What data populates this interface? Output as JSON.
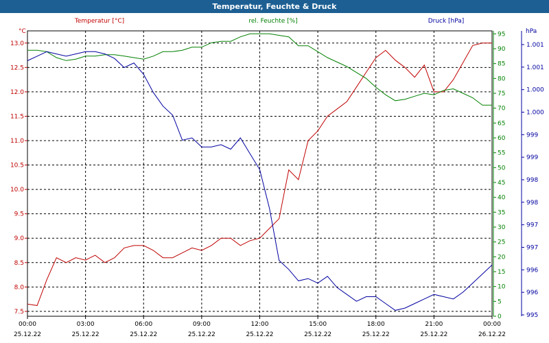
{
  "chart_data": {
    "type": "line",
    "title": "Temperatur, Feuchte & Druck",
    "x_tick_labels": [
      {
        "time": "00:00",
        "date": "25.12.22"
      },
      {
        "time": "03:00",
        "date": "25.12.22"
      },
      {
        "time": "06:00",
        "date": "25.12.22"
      },
      {
        "time": "09:00",
        "date": "25.12.22"
      },
      {
        "time": "12:00",
        "date": "25.12.22"
      },
      {
        "time": "15:00",
        "date": "25.12.22"
      },
      {
        "time": "18:00",
        "date": "25.12.22"
      },
      {
        "time": "21:00",
        "date": "25.12.22"
      },
      {
        "time": "00:00",
        "date": "26.12.22"
      }
    ],
    "x_range_hours": [
      0,
      24
    ],
    "axes": {
      "temperature": {
        "label": "Temperatur [°C]",
        "unit": "°C",
        "ylim": [
          7.4,
          13.25
        ],
        "ticks": [
          7.5,
          8.0,
          8.5,
          9.0,
          9.5,
          10.0,
          10.5,
          11.0,
          11.5,
          12.0,
          12.5,
          13.0
        ],
        "color": "#c00000"
      },
      "humidity": {
        "label": "rel. Feuchte [%]",
        "unit": "%",
        "ylim": [
          0,
          96
        ],
        "ticks": [
          0,
          5,
          10,
          15,
          20,
          25,
          30,
          35,
          40,
          45,
          50,
          55,
          60,
          65,
          70,
          75,
          80,
          85,
          90,
          95
        ],
        "color": "#008000"
      },
      "pressure": {
        "label": "Druck [hPa]",
        "unit": "hPa",
        "tick_labels": [
          "995",
          "996",
          "996",
          "997",
          "997",
          "998",
          "998",
          "999",
          "999",
          "1.000",
          "1.000",
          "1.001",
          "1.001"
        ],
        "color": "#0000a0"
      }
    },
    "series": [
      {
        "name": "Temperatur [°C]",
        "axis": "temperature",
        "color": "#c00000",
        "x": [
          0,
          0.5,
          1,
          1.5,
          2,
          2.5,
          3,
          3.5,
          4,
          4.5,
          5,
          5.5,
          6,
          6.5,
          7,
          7.5,
          8,
          8.5,
          9,
          9.5,
          10,
          10.5,
          11,
          11.5,
          12,
          12.5,
          13,
          13.5,
          14,
          14.5,
          15,
          15.5,
          16,
          16.5,
          17,
          17.5,
          18,
          18.5,
          19,
          19.5,
          20,
          20.5,
          21,
          21.5,
          22,
          22.5,
          23,
          23.5,
          24
        ],
        "values": [
          7.65,
          7.62,
          8.15,
          8.6,
          8.5,
          8.6,
          8.55,
          8.65,
          8.5,
          8.6,
          8.8,
          8.85,
          8.85,
          8.75,
          8.6,
          8.6,
          8.7,
          8.8,
          8.75,
          8.85,
          9.0,
          9.0,
          8.85,
          8.95,
          9.0,
          9.2,
          9.4,
          10.4,
          10.2,
          11.0,
          11.2,
          11.5,
          11.65,
          11.8,
          12.1,
          12.4,
          12.7,
          12.85,
          12.65,
          12.5,
          12.3,
          12.55,
          12.0,
          12.0,
          12.25,
          12.6,
          12.95,
          13.0,
          13.0
        ]
      },
      {
        "name": "rel. Feuchte [%]",
        "axis": "humidity",
        "color": "#008000",
        "x": [
          0,
          0.5,
          1,
          1.5,
          2,
          2.5,
          3,
          3.5,
          4,
          4.5,
          5,
          5.5,
          6,
          6.5,
          7,
          7.5,
          8,
          8.5,
          9,
          9.5,
          10,
          10.5,
          11,
          11.5,
          12,
          12.5,
          13,
          13.5,
          14,
          14.5,
          15,
          15.5,
          16,
          16.5,
          17,
          17.5,
          18,
          18.5,
          19,
          19.5,
          20,
          20.5,
          21,
          21.5,
          22,
          22.5,
          23,
          23.5,
          24
        ],
        "values": [
          89.5,
          89.5,
          89,
          87,
          86,
          86.5,
          87.5,
          87.5,
          88,
          88,
          87.5,
          87,
          86.5,
          87.5,
          89,
          89,
          89.5,
          90.5,
          90.5,
          92,
          92.5,
          92.5,
          94,
          95,
          95,
          95,
          94.5,
          94,
          91,
          91,
          89,
          87,
          85.5,
          84,
          82,
          80,
          77,
          74.5,
          72.5,
          73,
          74,
          75,
          74.5,
          76,
          76.5,
          75,
          73.5,
          71,
          71
        ]
      },
      {
        "name": "Druck [hPa]",
        "axis": "pressure",
        "color": "#0000a0",
        "x": [
          0,
          0.5,
          1,
          1.5,
          2,
          2.5,
          3,
          3.5,
          4,
          4.5,
          5,
          5.5,
          6,
          6.5,
          7,
          7.5,
          8,
          8.5,
          9,
          9.5,
          10,
          10.5,
          11,
          11.5,
          12,
          12.5,
          13,
          13.5,
          14,
          14.5,
          15,
          15.5,
          16,
          16.5,
          17,
          17.5,
          18,
          18.5,
          19,
          19.5,
          20,
          20.5,
          21,
          21.5,
          22,
          22.5,
          23,
          23.5,
          24
        ],
        "values": [
          1000.9,
          1001.0,
          1001.1,
          1001.05,
          1001.0,
          1001.05,
          1001.1,
          1001.1,
          1001.05,
          1000.95,
          1000.75,
          1000.85,
          1000.6,
          1000.2,
          999.9,
          999.7,
          999.15,
          999.2,
          999.0,
          999.0,
          999.05,
          998.95,
          999.2,
          998.85,
          998.5,
          997.65,
          996.5,
          996.3,
          996.05,
          996.1,
          996.0,
          996.15,
          995.9,
          995.75,
          995.6,
          995.7,
          995.7,
          995.55,
          995.4,
          995.45,
          995.55,
          995.65,
          995.75,
          995.7,
          995.65,
          995.8,
          996.0,
          996.2,
          996.4
        ]
      }
    ]
  }
}
